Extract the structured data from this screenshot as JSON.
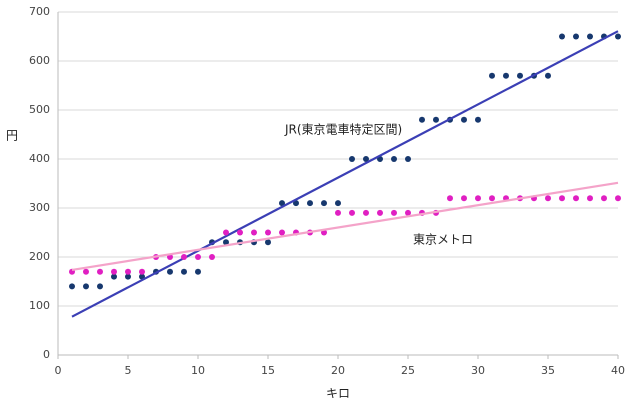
{
  "chart_data": {
    "type": "scatter",
    "x_label": "キロ",
    "y_label": "円",
    "x": [
      1,
      2,
      3,
      4,
      5,
      6,
      7,
      8,
      9,
      10,
      11,
      12,
      13,
      14,
      15,
      16,
      17,
      18,
      19,
      20,
      21,
      22,
      23,
      24,
      25,
      26,
      27,
      28,
      29,
      30,
      31,
      32,
      33,
      34,
      35,
      36,
      37,
      38,
      39,
      40
    ],
    "series": [
      {
        "name": "JR(東京電車特定区間)",
        "color": "#17386e",
        "trend_color": "#3b3fb5",
        "trendline": true,
        "values": [
          140,
          140,
          140,
          160,
          160,
          160,
          170,
          170,
          170,
          170,
          230,
          230,
          230,
          230,
          230,
          310,
          310,
          310,
          310,
          310,
          400,
          400,
          400,
          400,
          400,
          480,
          480,
          480,
          480,
          480,
          570,
          570,
          570,
          570,
          570,
          650,
          650,
          650,
          650,
          650
        ]
      },
      {
        "name": "東京メトロ",
        "color": "#e01fc2",
        "trend_color": "#f4a3c9",
        "trendline": true,
        "values": [
          170,
          170,
          170,
          170,
          170,
          170,
          200,
          200,
          200,
          200,
          200,
          250,
          250,
          250,
          250,
          250,
          250,
          250,
          250,
          290,
          290,
          290,
          290,
          290,
          290,
          290,
          290,
          320,
          320,
          320,
          320,
          320,
          320,
          320,
          320,
          320,
          320,
          320,
          320,
          320
        ]
      }
    ],
    "xlim": [
      0,
      40
    ],
    "xticks": [
      0,
      5,
      10,
      15,
      20,
      25,
      30,
      35,
      40
    ],
    "ylim": [
      0,
      700
    ],
    "yticks": [
      0,
      100,
      200,
      300,
      400,
      500,
      600,
      700
    ],
    "grid": true
  }
}
